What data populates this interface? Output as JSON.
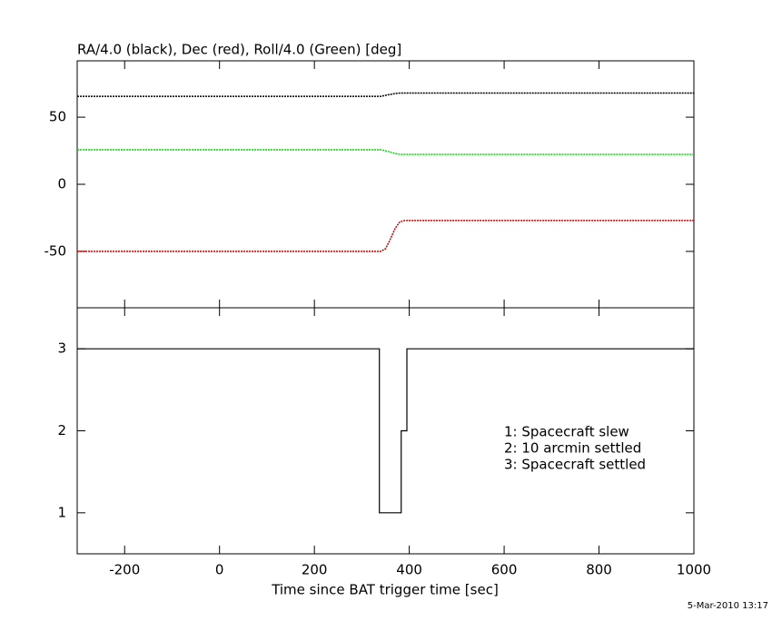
{
  "chart_data": [
    {
      "type": "line",
      "title": "RA/4.0 (black), Dec (red), Roll/4.0 (Green) [deg]",
      "x": [
        -300,
        340,
        350,
        360,
        370,
        380,
        390,
        1000
      ],
      "series": [
        {
          "name": "RA/4.0",
          "color": "#000000",
          "values": [
            65.5,
            65.5,
            66.3,
            67,
            67.6,
            68,
            68,
            68
          ]
        },
        {
          "name": "Dec",
          "color": "#d00000",
          "values": [
            -50,
            -50,
            -48,
            -41,
            -33,
            -28,
            -27,
            -27
          ]
        },
        {
          "name": "Roll/4.0",
          "color": "#00dd00",
          "values": [
            25.7,
            25.7,
            25,
            24,
            23,
            22.3,
            22.3,
            22.3
          ]
        }
      ],
      "xlim": [
        -300,
        1000
      ],
      "xticks": [
        -200,
        0,
        200,
        400,
        600,
        800,
        1000
      ],
      "ylim": [
        -92,
        92
      ],
      "yticks": [
        -50,
        0,
        50
      ]
    },
    {
      "type": "step",
      "x_label": "Time since BAT trigger time [sec]",
      "x": [
        -300,
        337,
        383,
        395,
        1000
      ],
      "values": [
        3,
        1,
        2,
        3,
        3
      ],
      "color": "#000000",
      "annotations": [
        "1: Spacecraft slew",
        "2: 10 arcmin settled",
        "3: Spacecraft settled"
      ],
      "xlim": [
        -300,
        1000
      ],
      "xticks": [
        -200,
        0,
        200,
        400,
        600,
        800,
        1000
      ],
      "ylim": [
        0.5,
        3.5
      ],
      "yticks": [
        1,
        2,
        3
      ]
    }
  ],
  "footer": "5-Mar-2010 13:17"
}
